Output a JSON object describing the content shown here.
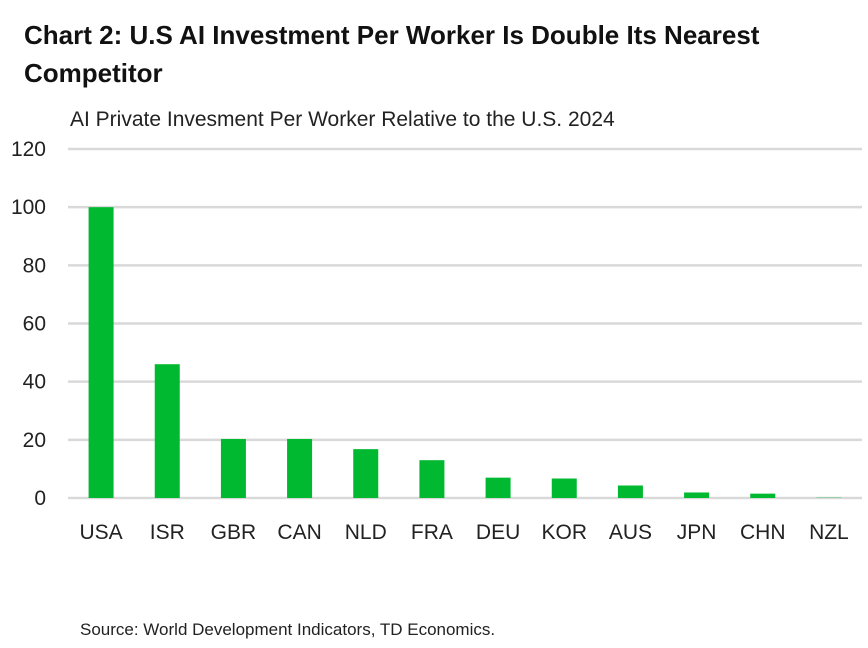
{
  "title": "Chart 2: U.S AI Investment Per Worker Is Double Its Nearest Competitor",
  "subtitle": "AI Private Invesment Per Worker Relative to the U.S. 2024",
  "source": "Source: World Development Indicators, TD Economics.",
  "chart_data": {
    "type": "bar",
    "title": "Chart 2: U.S AI Investment Per Worker Is Double Its Nearest Competitor",
    "subtitle": "AI Private Invesment Per Worker Relative to the U.S. 2024",
    "categories": [
      "USA",
      "ISR",
      "GBR",
      "CAN",
      "NLD",
      "FRA",
      "DEU",
      "KOR",
      "AUS",
      "JPN",
      "CHN",
      "NZL"
    ],
    "values": [
      100,
      46,
      20.3,
      20.3,
      16.8,
      13,
      7,
      6.7,
      4.3,
      1.9,
      1.5,
      0.1
    ],
    "ylim": [
      0,
      120
    ],
    "yticks": [
      0,
      20,
      40,
      60,
      80,
      100,
      120
    ],
    "xlabel": "",
    "ylabel": "",
    "grid": true,
    "legend": "none",
    "bar_color": "#00b930",
    "grid_color": "#d9d9d9"
  }
}
